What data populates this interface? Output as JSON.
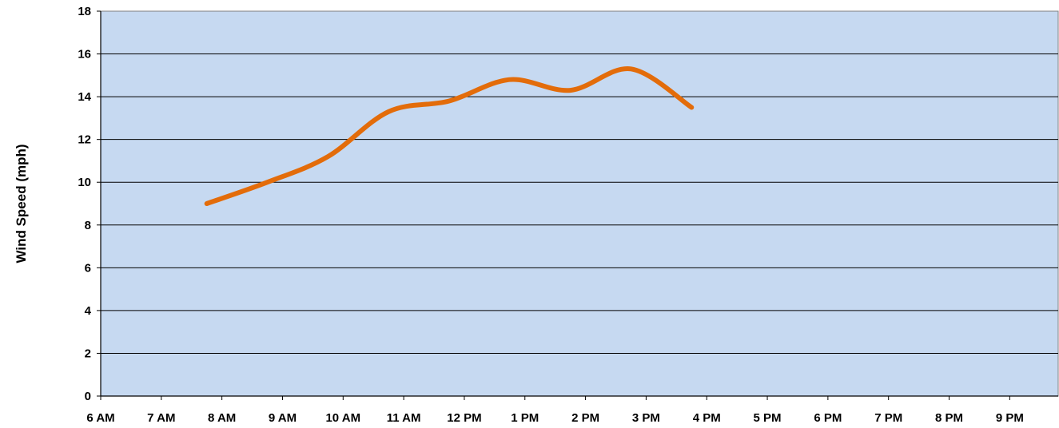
{
  "chart_data": {
    "type": "line",
    "title": "",
    "xlabel": "",
    "ylabel": "Wind Speed (mph)",
    "x_ticks": [
      "6 AM",
      "7 AM",
      "8 AM",
      "9 AM",
      "10 AM",
      "11 AM",
      "12 PM",
      "1 PM",
      "2 PM",
      "3 PM",
      "4 PM",
      "5 PM",
      "6 PM",
      "7 PM",
      "8 PM",
      "9 PM"
    ],
    "y_ticks": [
      "0",
      "2",
      "4",
      "6",
      "8",
      "10",
      "12",
      "14",
      "16",
      "18"
    ],
    "ylim": [
      0,
      18
    ],
    "xlim_hours": [
      6,
      21.8
    ],
    "grid": "horizontal",
    "legend": "none",
    "plot_background": "#c6d9f1",
    "series": [
      {
        "color": "#e36c0a",
        "smooth": true,
        "x": [
          7.75,
          8.75,
          9.75,
          10.75,
          11.75,
          12.75,
          13.75,
          14.75,
          15.75
        ],
        "y": [
          9.0,
          10.0,
          11.2,
          13.3,
          13.8,
          14.8,
          14.3,
          15.3,
          13.5
        ]
      }
    ]
  }
}
